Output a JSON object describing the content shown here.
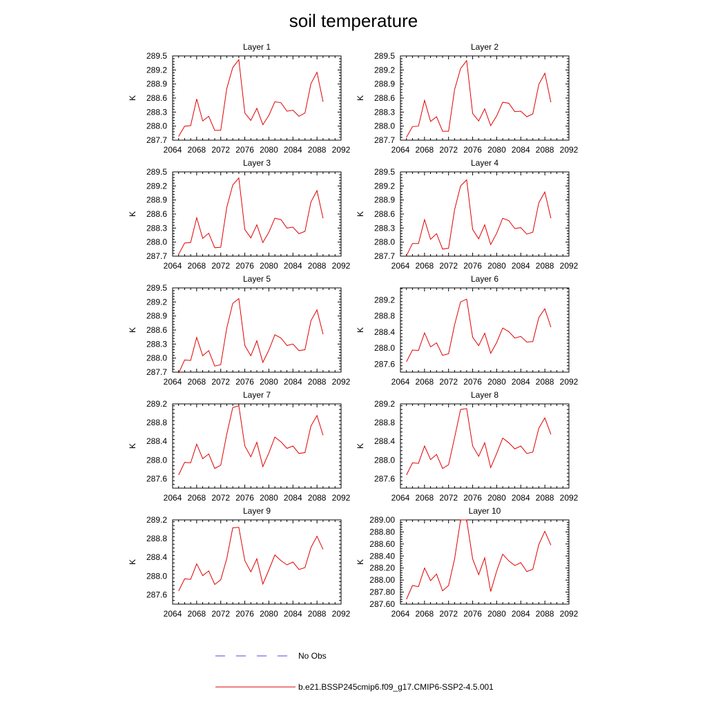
{
  "title": "soil temperature",
  "legend": {
    "position": "bottom",
    "entries": [
      {
        "label": "No Obs",
        "color": "#4a4ad8",
        "style": "dashed"
      },
      {
        "label": "b.e21.BSSP245cmip6.f09_g17.CMIP6-SSP2-4.5.001",
        "color": "#e00000",
        "style": "solid"
      }
    ]
  },
  "chart_data": [
    {
      "type": "line",
      "title": "Layer 1",
      "ylabel": "K",
      "xlim": [
        2064,
        2092
      ],
      "ylim": [
        287.7,
        289.5
      ],
      "xticks": [
        2064,
        2068,
        2072,
        2076,
        2080,
        2084,
        2088,
        2092
      ],
      "yticks": [
        "287.7",
        "288.0",
        "288.3",
        "288.6",
        "288.9",
        "289.2",
        "289.5"
      ],
      "series": [
        {
          "color": "#e00000",
          "x": [
            2065,
            2066,
            2067,
            2068,
            2069,
            2070,
            2071,
            2072,
            2073,
            2074,
            2075,
            2076,
            2077,
            2078,
            2079,
            2080,
            2081,
            2082,
            2083,
            2084,
            2085,
            2086,
            2087,
            2088,
            2089
          ],
          "y": [
            287.78,
            288.0,
            288.01,
            288.58,
            288.11,
            288.21,
            287.91,
            287.91,
            288.8,
            289.25,
            289.42,
            288.28,
            288.12,
            288.38,
            288.03,
            288.23,
            288.52,
            288.5,
            288.32,
            288.34,
            288.21,
            288.28,
            288.91,
            289.15,
            288.52
          ]
        }
      ]
    },
    {
      "type": "line",
      "title": "Layer 2",
      "ylabel": "K",
      "xlim": [
        2064,
        2092
      ],
      "ylim": [
        287.7,
        289.5
      ],
      "xticks": [
        2064,
        2068,
        2072,
        2076,
        2080,
        2084,
        2088,
        2092
      ],
      "yticks": [
        "287.7",
        "288.0",
        "288.3",
        "288.6",
        "288.9",
        "289.2",
        "289.5"
      ],
      "series": [
        {
          "color": "#e00000",
          "x": [
            2065,
            2066,
            2067,
            2068,
            2069,
            2070,
            2071,
            2072,
            2073,
            2074,
            2075,
            2076,
            2077,
            2078,
            2079,
            2080,
            2081,
            2082,
            2083,
            2084,
            2085,
            2086,
            2087,
            2088,
            2089
          ],
          "y": [
            287.76,
            287.99,
            288.0,
            288.55,
            288.1,
            288.2,
            287.89,
            287.89,
            288.78,
            289.23,
            289.4,
            288.27,
            288.11,
            288.37,
            288.01,
            288.22,
            288.51,
            288.49,
            288.31,
            288.32,
            288.2,
            288.26,
            288.89,
            289.13,
            288.51
          ]
        }
      ]
    },
    {
      "type": "line",
      "title": "Layer 3",
      "ylabel": "K",
      "xlim": [
        2064,
        2092
      ],
      "ylim": [
        287.7,
        289.5
      ],
      "xticks": [
        2064,
        2068,
        2072,
        2076,
        2080,
        2084,
        2088,
        2092
      ],
      "yticks": [
        "287.7",
        "288.0",
        "288.3",
        "288.6",
        "288.9",
        "289.2",
        "289.5"
      ],
      "series": [
        {
          "color": "#e00000",
          "x": [
            2065,
            2066,
            2067,
            2068,
            2069,
            2070,
            2071,
            2072,
            2073,
            2074,
            2075,
            2076,
            2077,
            2078,
            2079,
            2080,
            2081,
            2082,
            2083,
            2084,
            2085,
            2086,
            2087,
            2088,
            2089
          ],
          "y": [
            287.74,
            287.98,
            287.99,
            288.52,
            288.08,
            288.19,
            287.88,
            287.89,
            288.74,
            289.22,
            289.37,
            288.27,
            288.09,
            288.37,
            287.99,
            288.21,
            288.51,
            288.48,
            288.3,
            288.32,
            288.18,
            288.23,
            288.86,
            289.1,
            288.51
          ]
        }
      ]
    },
    {
      "type": "line",
      "title": "Layer 4",
      "ylabel": "K",
      "xlim": [
        2064,
        2092
      ],
      "ylim": [
        287.7,
        289.5
      ],
      "xticks": [
        2064,
        2068,
        2072,
        2076,
        2080,
        2084,
        2088,
        2092
      ],
      "yticks": [
        "287.7",
        "288.0",
        "288.3",
        "288.6",
        "288.9",
        "289.2",
        "289.5"
      ],
      "series": [
        {
          "color": "#e00000",
          "x": [
            2065,
            2066,
            2067,
            2068,
            2069,
            2070,
            2071,
            2072,
            2073,
            2074,
            2075,
            2076,
            2077,
            2078,
            2079,
            2080,
            2081,
            2082,
            2083,
            2084,
            2085,
            2086,
            2087,
            2088,
            2089
          ],
          "y": [
            287.71,
            287.97,
            287.97,
            288.48,
            288.06,
            288.18,
            287.85,
            287.87,
            288.69,
            289.2,
            289.33,
            288.27,
            288.07,
            288.37,
            287.95,
            288.19,
            288.51,
            288.46,
            288.29,
            288.31,
            288.17,
            288.21,
            288.84,
            289.07,
            288.51
          ]
        }
      ]
    },
    {
      "type": "line",
      "title": "Layer 5",
      "ylabel": "K",
      "xlim": [
        2064,
        2092
      ],
      "ylim": [
        287.7,
        289.5
      ],
      "xticks": [
        2064,
        2068,
        2072,
        2076,
        2080,
        2084,
        2088,
        2092
      ],
      "yticks": [
        "287.7",
        "288.0",
        "288.3",
        "288.6",
        "288.9",
        "289.2",
        "289.5"
      ],
      "series": [
        {
          "color": "#e00000",
          "x": [
            2065,
            2066,
            2067,
            2068,
            2069,
            2070,
            2071,
            2072,
            2073,
            2074,
            2075,
            2076,
            2077,
            2078,
            2079,
            2080,
            2081,
            2082,
            2083,
            2084,
            2085,
            2086,
            2087,
            2088,
            2089
          ],
          "y": [
            287.68,
            287.96,
            287.95,
            288.44,
            288.05,
            288.16,
            287.83,
            287.86,
            288.64,
            289.17,
            289.27,
            288.27,
            288.05,
            288.37,
            287.91,
            288.17,
            288.5,
            288.43,
            288.27,
            288.3,
            288.16,
            288.18,
            288.8,
            289.03,
            288.51
          ]
        }
      ]
    },
    {
      "type": "line",
      "title": "Layer 6",
      "ylabel": "K",
      "xlim": [
        2064,
        2092
      ],
      "ylim": [
        287.4,
        289.5
      ],
      "xticks": [
        2064,
        2068,
        2072,
        2076,
        2080,
        2084,
        2088,
        2092
      ],
      "yticks": [
        "287.6",
        "288.0",
        "288.4",
        "288.8",
        "289.2"
      ],
      "series": [
        {
          "color": "#e00000",
          "x": [
            2065,
            2066,
            2067,
            2068,
            2069,
            2070,
            2071,
            2072,
            2073,
            2074,
            2075,
            2076,
            2077,
            2078,
            2079,
            2080,
            2081,
            2082,
            2083,
            2084,
            2085,
            2086,
            2087,
            2088,
            2089
          ],
          "y": [
            287.66,
            287.95,
            287.94,
            288.38,
            288.03,
            288.13,
            287.82,
            287.86,
            288.58,
            289.15,
            289.22,
            288.27,
            288.06,
            288.37,
            287.87,
            288.14,
            288.5,
            288.41,
            288.25,
            288.29,
            288.15,
            288.16,
            288.76,
            288.98,
            288.52
          ]
        }
      ]
    },
    {
      "type": "line",
      "title": "Layer 7",
      "ylabel": "K",
      "xlim": [
        2064,
        2092
      ],
      "ylim": [
        287.4,
        289.2
      ],
      "xticks": [
        2064,
        2068,
        2072,
        2076,
        2080,
        2084,
        2088,
        2092
      ],
      "yticks": [
        "287.6",
        "288.0",
        "288.4",
        "288.8",
        "289.2"
      ],
      "series": [
        {
          "color": "#e00000",
          "x": [
            2065,
            2066,
            2067,
            2068,
            2069,
            2070,
            2071,
            2072,
            2073,
            2074,
            2075,
            2076,
            2077,
            2078,
            2079,
            2080,
            2081,
            2082,
            2083,
            2084,
            2085,
            2086,
            2087,
            2088,
            2089
          ],
          "y": [
            287.68,
            287.95,
            287.94,
            288.34,
            288.03,
            288.13,
            287.82,
            287.89,
            288.55,
            289.12,
            289.16,
            288.3,
            288.07,
            288.38,
            287.86,
            288.15,
            288.49,
            288.39,
            288.25,
            288.3,
            288.14,
            288.16,
            288.73,
            288.95,
            288.53
          ]
        }
      ]
    },
    {
      "type": "line",
      "title": "Layer 8",
      "ylabel": "K",
      "xlim": [
        2064,
        2092
      ],
      "ylim": [
        287.4,
        289.2
      ],
      "xticks": [
        2064,
        2068,
        2072,
        2076,
        2080,
        2084,
        2088,
        2092
      ],
      "yticks": [
        "287.6",
        "288.0",
        "288.4",
        "288.8",
        "289.2"
      ],
      "series": [
        {
          "color": "#e00000",
          "x": [
            2065,
            2066,
            2067,
            2068,
            2069,
            2070,
            2071,
            2072,
            2073,
            2074,
            2075,
            2076,
            2077,
            2078,
            2079,
            2080,
            2081,
            2082,
            2083,
            2084,
            2085,
            2086,
            2087,
            2088,
            2089
          ],
          "y": [
            287.68,
            287.94,
            287.93,
            288.3,
            288.01,
            288.12,
            287.82,
            287.9,
            288.48,
            289.08,
            289.1,
            288.3,
            288.08,
            288.37,
            287.84,
            288.14,
            288.47,
            288.37,
            288.24,
            288.3,
            288.14,
            288.17,
            288.68,
            288.9,
            288.55
          ]
        }
      ]
    },
    {
      "type": "line",
      "title": "Layer 9",
      "ylabel": "K",
      "xlim": [
        2064,
        2092
      ],
      "ylim": [
        287.4,
        289.2
      ],
      "xticks": [
        2064,
        2068,
        2072,
        2076,
        2080,
        2084,
        2088,
        2092
      ],
      "yticks": [
        "287.6",
        "288.0",
        "288.4",
        "288.8",
        "289.2"
      ],
      "series": [
        {
          "color": "#e00000",
          "x": [
            2065,
            2066,
            2067,
            2068,
            2069,
            2070,
            2071,
            2072,
            2073,
            2074,
            2075,
            2076,
            2077,
            2078,
            2079,
            2080,
            2081,
            2082,
            2083,
            2084,
            2085,
            2086,
            2087,
            2088,
            2089
          ],
          "y": [
            287.68,
            287.94,
            287.93,
            288.26,
            288.01,
            288.11,
            287.82,
            287.92,
            288.37,
            289.03,
            289.04,
            288.33,
            288.09,
            288.37,
            287.83,
            288.13,
            288.45,
            288.33,
            288.24,
            288.3,
            288.14,
            288.18,
            288.61,
            288.85,
            288.57
          ]
        }
      ]
    },
    {
      "type": "line",
      "title": "Layer 10",
      "ylabel": "K",
      "xlim": [
        2064,
        2092
      ],
      "ylim": [
        287.6,
        289.0
      ],
      "xticks": [
        2064,
        2068,
        2072,
        2076,
        2080,
        2084,
        2088,
        2092
      ],
      "yticks": [
        "287.60",
        "287.80",
        "288.00",
        "288.20",
        "288.40",
        "288.60",
        "288.80",
        "289.00"
      ],
      "series": [
        {
          "color": "#e00000",
          "x": [
            2065,
            2066,
            2067,
            2068,
            2069,
            2070,
            2071,
            2072,
            2073,
            2074,
            2075,
            2076,
            2077,
            2078,
            2079,
            2080,
            2081,
            2082,
            2083,
            2084,
            2085,
            2086,
            2087,
            2088,
            2089
          ],
          "y": [
            287.68,
            287.91,
            287.89,
            288.2,
            287.99,
            288.1,
            287.82,
            287.91,
            288.35,
            289.0,
            289.0,
            288.35,
            288.09,
            288.37,
            287.81,
            288.15,
            288.43,
            288.32,
            288.24,
            288.29,
            288.14,
            288.18,
            288.59,
            288.81,
            288.58
          ]
        }
      ]
    }
  ]
}
